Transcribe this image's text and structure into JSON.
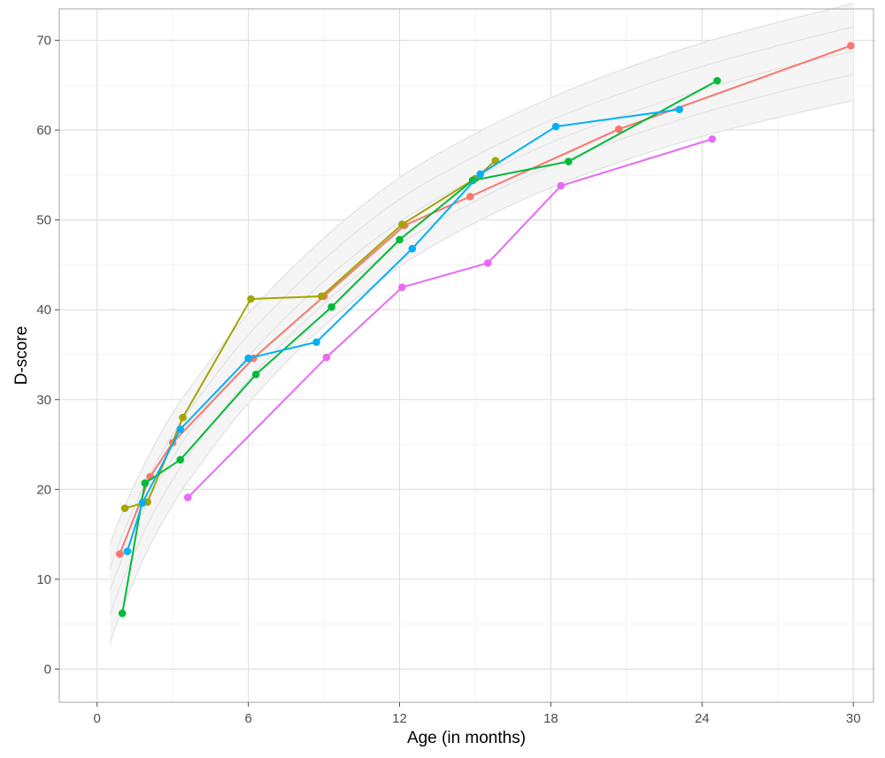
{
  "chart_data": {
    "type": "line",
    "title": "",
    "xlabel": "Age (in months)",
    "ylabel": "D-score",
    "xlim": [
      -1.5,
      30.8
    ],
    "ylim": [
      -3.7,
      73.5
    ],
    "x_ticks": [
      0,
      6,
      12,
      18,
      24,
      30
    ],
    "y_ticks": [
      0,
      10,
      20,
      30,
      40,
      50,
      60,
      70
    ],
    "grid": true,
    "legend": "none",
    "reference_band": {
      "description_note": "",
      "x": [
        0.5,
        1,
        2,
        3,
        4,
        6,
        9,
        12,
        15,
        18,
        21,
        24,
        27,
        30
      ],
      "upper": [
        13.8,
        17.5,
        23.5,
        28.5,
        32.5,
        39.6,
        48.0,
        54.7,
        59.6,
        63.6,
        66.9,
        69.7,
        72.0,
        74.1
      ],
      "upper_inner": [
        11.1,
        14.9,
        21.2,
        26.1,
        30.1,
        37.2,
        45.6,
        52.3,
        57.1,
        61.1,
        64.3,
        67.1,
        69.4,
        71.5
      ],
      "median": [
        8.7,
        12.3,
        18.6,
        23.6,
        27.7,
        34.8,
        43.2,
        49.8,
        54.6,
        58.6,
        61.8,
        64.5,
        66.8,
        68.8
      ],
      "lower_inner": [
        6.0,
        9.8,
        16.1,
        21.1,
        25.2,
        32.2,
        40.7,
        47.3,
        52.1,
        56.0,
        59.2,
        61.9,
        64.2,
        66.2
      ],
      "lower": [
        2.8,
        6.7,
        13.2,
        18.3,
        22.4,
        29.6,
        38.2,
        44.8,
        49.7,
        53.6,
        56.7,
        59.3,
        61.4,
        63.3
      ]
    },
    "series": [
      {
        "color": "#F8766D",
        "x": [
          0.9,
          2.1,
          3.0,
          6.2,
          9.0,
          12.2,
          14.8,
          20.7,
          29.9
        ],
        "y": [
          12.8,
          21.4,
          25.2,
          34.6,
          41.5,
          49.4,
          52.6,
          60.1,
          69.4
        ]
      },
      {
        "color": "#A3A500",
        "x": [
          1.1,
          2.0,
          3.4,
          6.1,
          8.9,
          12.1,
          15.0,
          15.8
        ],
        "y": [
          17.9,
          18.6,
          28.0,
          41.2,
          41.5,
          49.5,
          54.6,
          56.6
        ]
      },
      {
        "color": "#00BA38",
        "x": [
          1.0,
          1.9,
          3.3,
          6.3,
          9.3,
          12.0,
          14.9,
          18.7,
          24.6
        ],
        "y": [
          6.2,
          20.7,
          23.3,
          32.8,
          40.3,
          47.8,
          54.4,
          56.5,
          65.5
        ]
      },
      {
        "color": "#00B0F6",
        "x": [
          1.2,
          1.8,
          3.3,
          6.0,
          8.7,
          12.5,
          15.2,
          18.2,
          23.1
        ],
        "y": [
          13.1,
          18.5,
          26.7,
          34.6,
          36.4,
          46.8,
          55.1,
          60.4,
          62.3
        ]
      },
      {
        "color": "#E76BF3",
        "x": [
          3.6,
          9.1,
          12.1,
          15.5,
          18.4,
          24.4
        ],
        "y": [
          19.1,
          34.7,
          42.5,
          45.2,
          53.8,
          59.0
        ]
      }
    ]
  }
}
